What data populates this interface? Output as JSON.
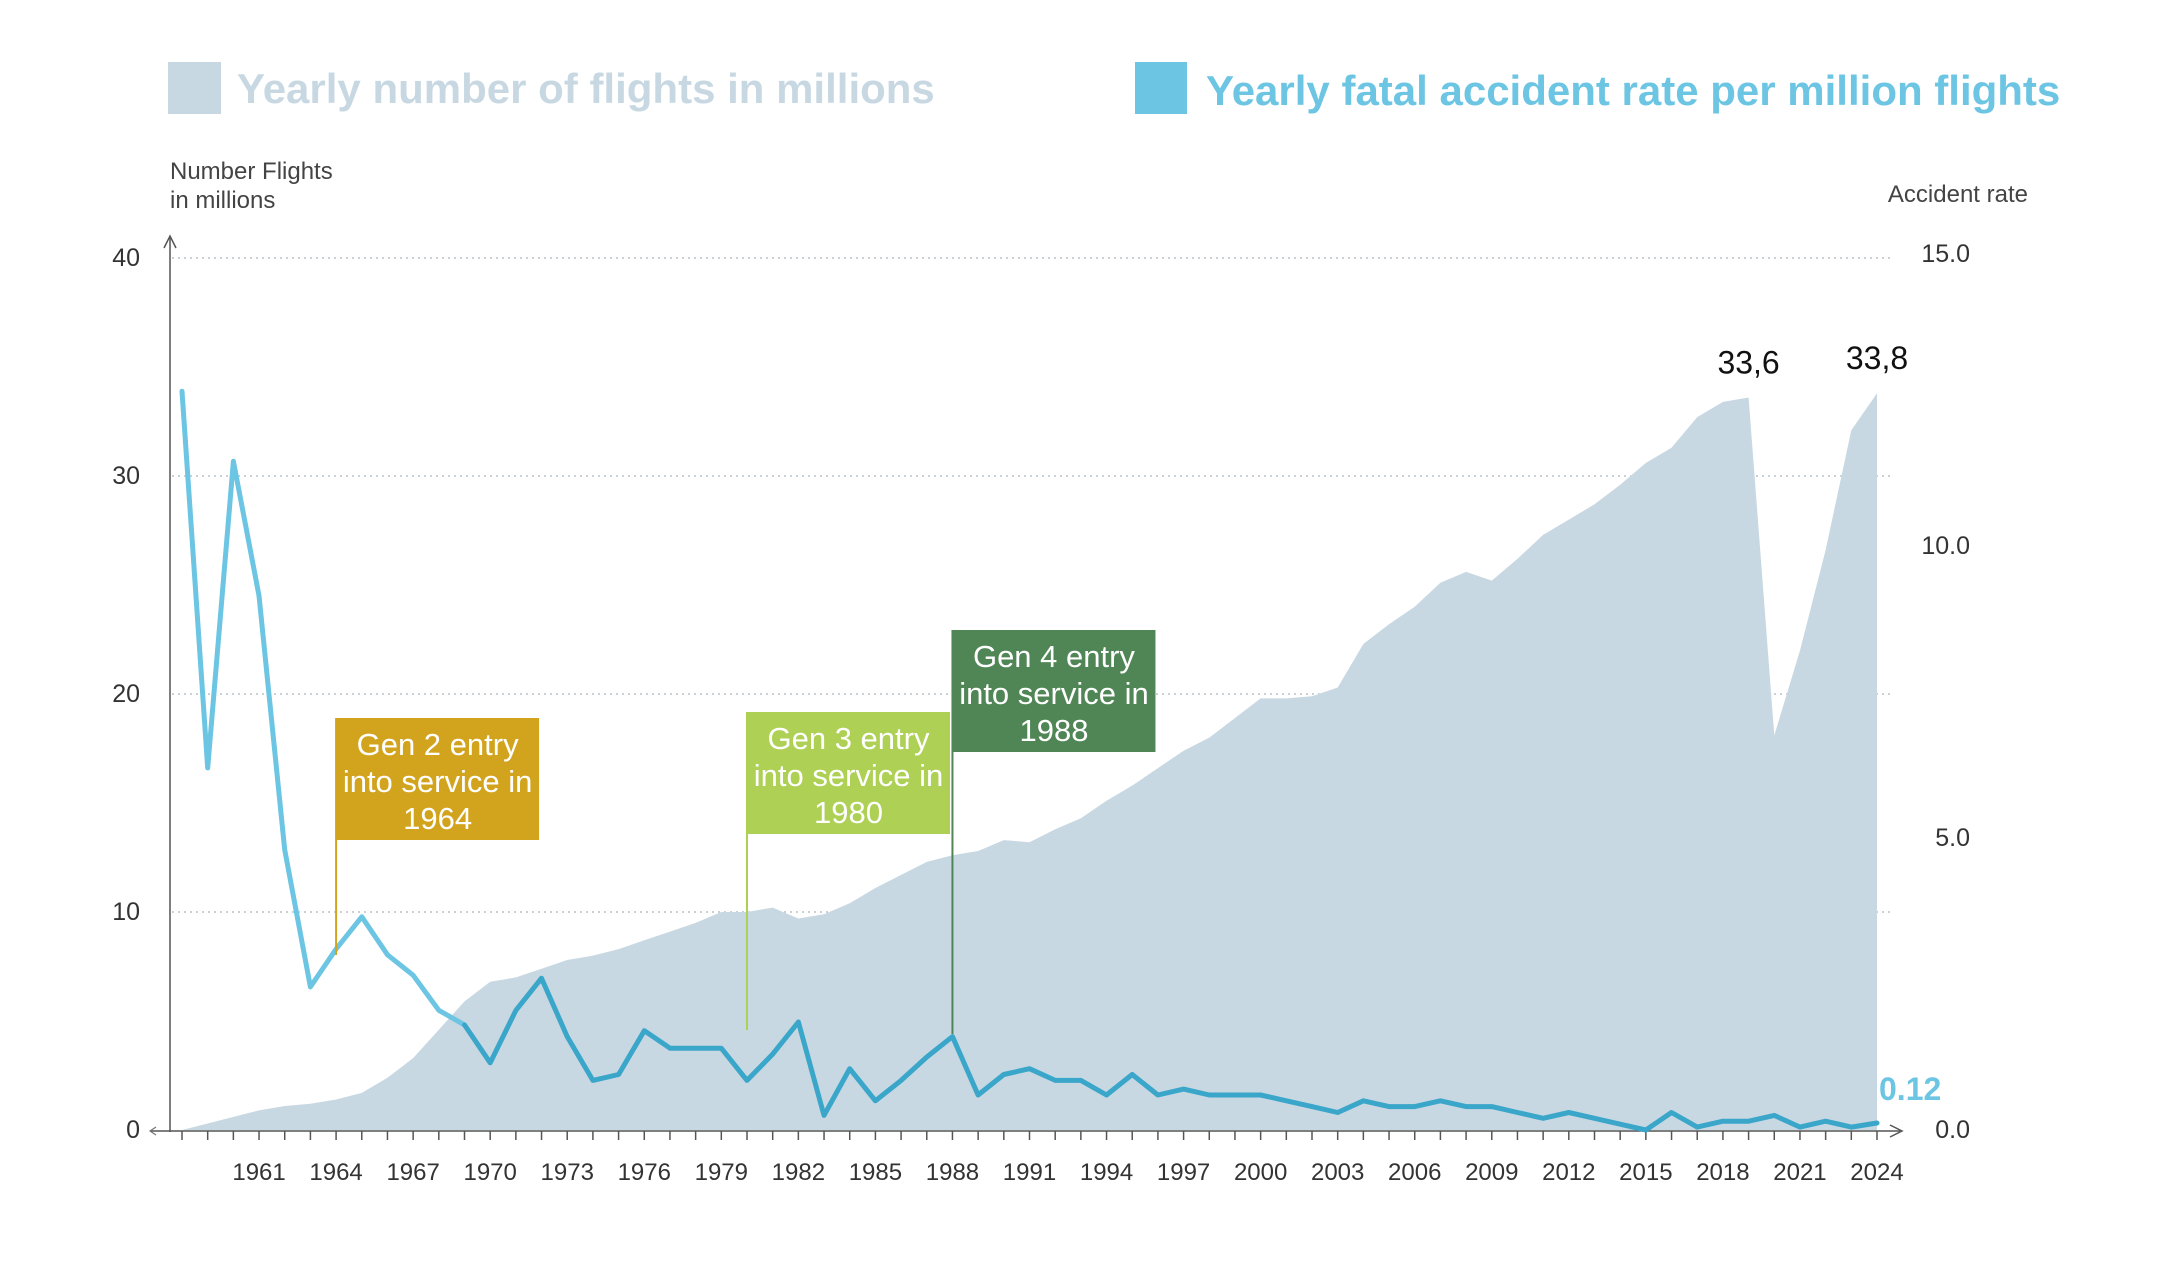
{
  "colors": {
    "flights_area": "#c8d8e2",
    "accident_line_early": "#6cc5e2",
    "accident_line": "#3aa6c9",
    "gen2": "#d2a41e",
    "gen3": "#add055",
    "gen4": "#508656"
  },
  "legend": {
    "flights": "Yearly number of flights in millions",
    "accident": "Yearly fatal accident rate per million flights"
  },
  "chart_data": {
    "type": "area+line",
    "title": "",
    "xlabel": "",
    "ylabel_left": "Number Flights\nin millions",
    "ylabel_left_line1": "Number Flights",
    "ylabel_left_line2": "in millions",
    "ylabel_right": "Accident rate",
    "x_range": [
      1958,
      2024
    ],
    "ylim_left": [
      0,
      40
    ],
    "ylim_right": [
      0,
      15
    ],
    "left_ticks": [
      "0",
      "10",
      "20",
      "30",
      "40"
    ],
    "right_ticks": [
      "0.0",
      "5.0",
      "10.0",
      "15.0"
    ],
    "x_tick_labels": [
      "1961",
      "1964",
      "1967",
      "1970",
      "1973",
      "1976",
      "1979",
      "1982",
      "1985",
      "1988",
      "1991",
      "1994",
      "1997",
      "2000",
      "2003",
      "2006",
      "2009",
      "2012",
      "2015",
      "2018",
      "2021",
      "2024"
    ],
    "grid": true,
    "legend_position": "top",
    "series": [
      {
        "name": "Yearly number of flights in millions",
        "type": "area",
        "axis": "left",
        "x": [
          1958,
          1959,
          1960,
          1961,
          1962,
          1963,
          1964,
          1965,
          1966,
          1967,
          1968,
          1969,
          1970,
          1971,
          1972,
          1973,
          1974,
          1975,
          1976,
          1977,
          1978,
          1979,
          1980,
          1981,
          1982,
          1983,
          1984,
          1985,
          1986,
          1987,
          1988,
          1989,
          1990,
          1991,
          1992,
          1993,
          1994,
          1995,
          1996,
          1997,
          1998,
          1999,
          2000,
          2001,
          2002,
          2003,
          2004,
          2005,
          2006,
          2007,
          2008,
          2009,
          2010,
          2011,
          2012,
          2013,
          2014,
          2015,
          2016,
          2017,
          2018,
          2019,
          2020,
          2021,
          2022,
          2023,
          2024
        ],
        "values": [
          0.0,
          0.3,
          0.6,
          0.9,
          1.1,
          1.2,
          1.4,
          1.7,
          2.4,
          3.3,
          4.6,
          5.9,
          6.8,
          7.0,
          7.4,
          7.8,
          8.0,
          8.3,
          8.7,
          9.1,
          9.5,
          10.0,
          10.0,
          10.2,
          9.7,
          9.9,
          10.4,
          11.1,
          11.7,
          12.3,
          12.6,
          12.8,
          13.3,
          13.2,
          13.8,
          14.3,
          15.1,
          15.8,
          16.6,
          17.4,
          18.0,
          18.9,
          19.8,
          19.8,
          19.9,
          20.3,
          22.3,
          23.2,
          24.0,
          25.1,
          25.6,
          25.2,
          26.2,
          27.3,
          28.0,
          28.7,
          29.6,
          30.6,
          31.3,
          32.7,
          33.4,
          33.6,
          18.1,
          22.0,
          26.6,
          32.1,
          33.8
        ]
      },
      {
        "name": "Yearly fatal accident rate per million flights",
        "type": "line",
        "axis": "right",
        "x": [
          1958,
          1959,
          1960,
          1961,
          1962,
          1963,
          1964,
          1965,
          1966,
          1967,
          1968,
          1969,
          1970,
          1971,
          1972,
          1973,
          1974,
          1975,
          1976,
          1977,
          1978,
          1979,
          1980,
          1981,
          1982,
          1983,
          1984,
          1985,
          1986,
          1987,
          1988,
          1989,
          1990,
          1991,
          1992,
          1993,
          1994,
          1995,
          1996,
          1997,
          1998,
          1999,
          2000,
          2001,
          2002,
          2003,
          2004,
          2005,
          2006,
          2007,
          2008,
          2009,
          2010,
          2011,
          2012,
          2013,
          2014,
          2015,
          2016,
          2017,
          2018,
          2019,
          2020,
          2021,
          2022,
          2023,
          2024
        ],
        "values": [
          12.65,
          6.2,
          11.45,
          9.15,
          4.8,
          2.45,
          3.1,
          3.65,
          3.0,
          2.65,
          2.05,
          1.8,
          1.15,
          2.05,
          2.6,
          1.6,
          0.85,
          0.95,
          1.7,
          1.4,
          1.4,
          1.4,
          0.85,
          1.3,
          1.85,
          0.25,
          1.05,
          0.5,
          0.85,
          1.25,
          1.6,
          0.6,
          0.95,
          1.05,
          0.85,
          0.85,
          0.6,
          0.95,
          0.6,
          0.7,
          0.6,
          0.6,
          0.6,
          0.5,
          0.4,
          0.3,
          0.5,
          0.4,
          0.4,
          0.5,
          0.4,
          0.4,
          0.3,
          0.2,
          0.3,
          0.2,
          0.1,
          0.0,
          0.3,
          0.05,
          0.15,
          0.15,
          0.25,
          0.05,
          0.15,
          0.05,
          0.12
        ]
      }
    ],
    "annotations": [
      {
        "text": "33,6",
        "series": "Yearly number of flights in millions",
        "x": 2019,
        "y": 33.6
      },
      {
        "text": "33,8",
        "series": "Yearly number of flights in millions",
        "x": 2024,
        "y": 33.8
      },
      {
        "text": "0.12",
        "series": "Yearly fatal accident rate per million flights",
        "x": 2024,
        "y": 0.12
      }
    ],
    "milestones": [
      {
        "year": 1964,
        "lines": [
          "Gen 2 entry",
          "into service in",
          "1964"
        ],
        "color_key": "gen2"
      },
      {
        "year": 1980,
        "lines": [
          "Gen 3 entry",
          "into service in",
          "1980"
        ],
        "color_key": "gen3"
      },
      {
        "year": 1988,
        "lines": [
          "Gen 4 entry",
          "into service in",
          "1988"
        ],
        "color_key": "gen4"
      }
    ]
  }
}
